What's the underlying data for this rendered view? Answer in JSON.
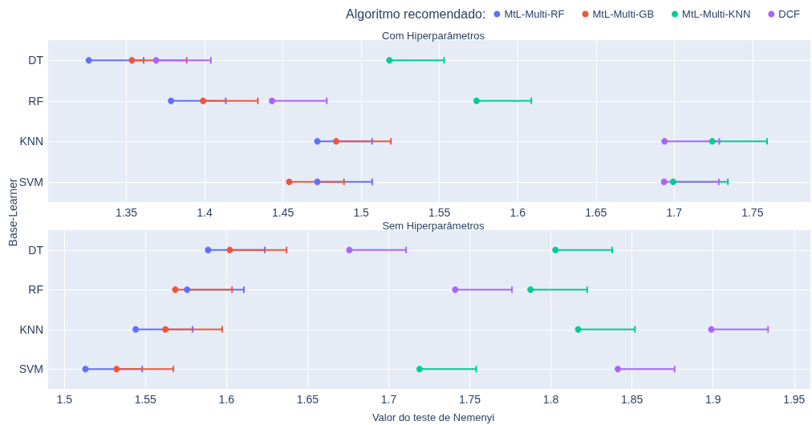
{
  "chart_data": [
    {
      "type": "scatter",
      "orientation": "horizontal",
      "title": "Com Hiperparâmetros",
      "ylabel": "Base-Learner",
      "legend_title": "Algoritmo recomendado:",
      "legend": "top right",
      "grid": true,
      "marker": "circle",
      "categories": [
        "DT",
        "RF",
        "KNN",
        "SVM"
      ],
      "xlim": [
        1.3,
        1.787
      ],
      "xticks": [
        1.35,
        1.4,
        1.45,
        1.5,
        1.55,
        1.6,
        1.65,
        1.7,
        1.75
      ],
      "series": [
        {
          "name": "MtL-Multi-RF",
          "color": "#636efa",
          "values": [
            1.326,
            1.3785,
            1.472,
            1.472
          ],
          "errors": [
            [
              1.326,
              1.361
            ],
            [
              1.3785,
              1.4135
            ],
            [
              1.472,
              1.507
            ],
            [
              1.472,
              1.507
            ]
          ]
        },
        {
          "name": "MtL-Multi-GB",
          "color": "#ef553b",
          "values": [
            1.3535,
            1.399,
            1.484,
            1.454
          ],
          "errors": [
            [
              1.3535,
              1.3885
            ],
            [
              1.399,
              1.434
            ],
            [
              1.484,
              1.519
            ],
            [
              1.454,
              1.489
            ]
          ]
        },
        {
          "name": "MtL-Multi-KNN",
          "color": "#00cc96",
          "values": [
            1.518,
            1.5737,
            1.7243,
            1.6993
          ],
          "errors": [
            [
              1.518,
              1.553
            ],
            [
              1.5737,
              1.6087
            ],
            [
              1.7243,
              1.7593
            ],
            [
              1.6993,
              1.7343
            ]
          ]
        },
        {
          "name": "DCF",
          "color": "#ab63fa",
          "values": [
            1.369,
            1.443,
            1.6938,
            1.6935
          ],
          "errors": [
            [
              1.369,
              1.404
            ],
            [
              1.443,
              1.478
            ],
            [
              1.6938,
              1.7288
            ],
            [
              1.6935,
              1.7285
            ]
          ]
        }
      ]
    },
    {
      "type": "scatter",
      "orientation": "horizontal",
      "title": "Sem Hiperparâmetros",
      "xlabel": "Valor do teste de Nemenyi",
      "legend": false,
      "grid": true,
      "marker": "circle",
      "categories": [
        "DT",
        "RF",
        "KNN",
        "SVM"
      ],
      "xlim": [
        1.49,
        1.96
      ],
      "xticks": [
        1.5,
        1.55,
        1.6,
        1.65,
        1.7,
        1.75,
        1.8,
        1.85,
        1.9,
        1.95
      ],
      "series": [
        {
          "color": "#636efa",
          "values": [
            1.5886,
            1.5757,
            1.544,
            1.513
          ],
          "errors": [
            [
              1.5886,
              1.6236
            ],
            [
              1.5757,
              1.6107
            ],
            [
              1.544,
              1.579
            ],
            [
              1.513,
              1.548
            ]
          ]
        },
        {
          "color": "#ef553b",
          "values": [
            1.602,
            1.5684,
            1.5623,
            1.5322
          ],
          "errors": [
            [
              1.602,
              1.637
            ],
            [
              1.5684,
              1.6034
            ],
            [
              1.5623,
              1.5973
            ],
            [
              1.5322,
              1.5672
            ]
          ]
        },
        {
          "color": "#00cc96",
          "values": [
            1.8028,
            1.7874,
            1.8168,
            1.719
          ],
          "errors": [
            [
              1.8028,
              1.8378
            ],
            [
              1.7874,
              1.8224
            ],
            [
              1.8168,
              1.8518
            ],
            [
              1.719,
              1.754
            ]
          ]
        },
        {
          "color": "#ab63fa",
          "values": [
            1.6757,
            1.741,
            1.8989,
            1.8413
          ],
          "errors": [
            [
              1.6757,
              1.7107
            ],
            [
              1.741,
              1.776
            ],
            [
              1.8989,
              1.9339
            ],
            [
              1.8413,
              1.8763
            ]
          ]
        }
      ]
    }
  ]
}
